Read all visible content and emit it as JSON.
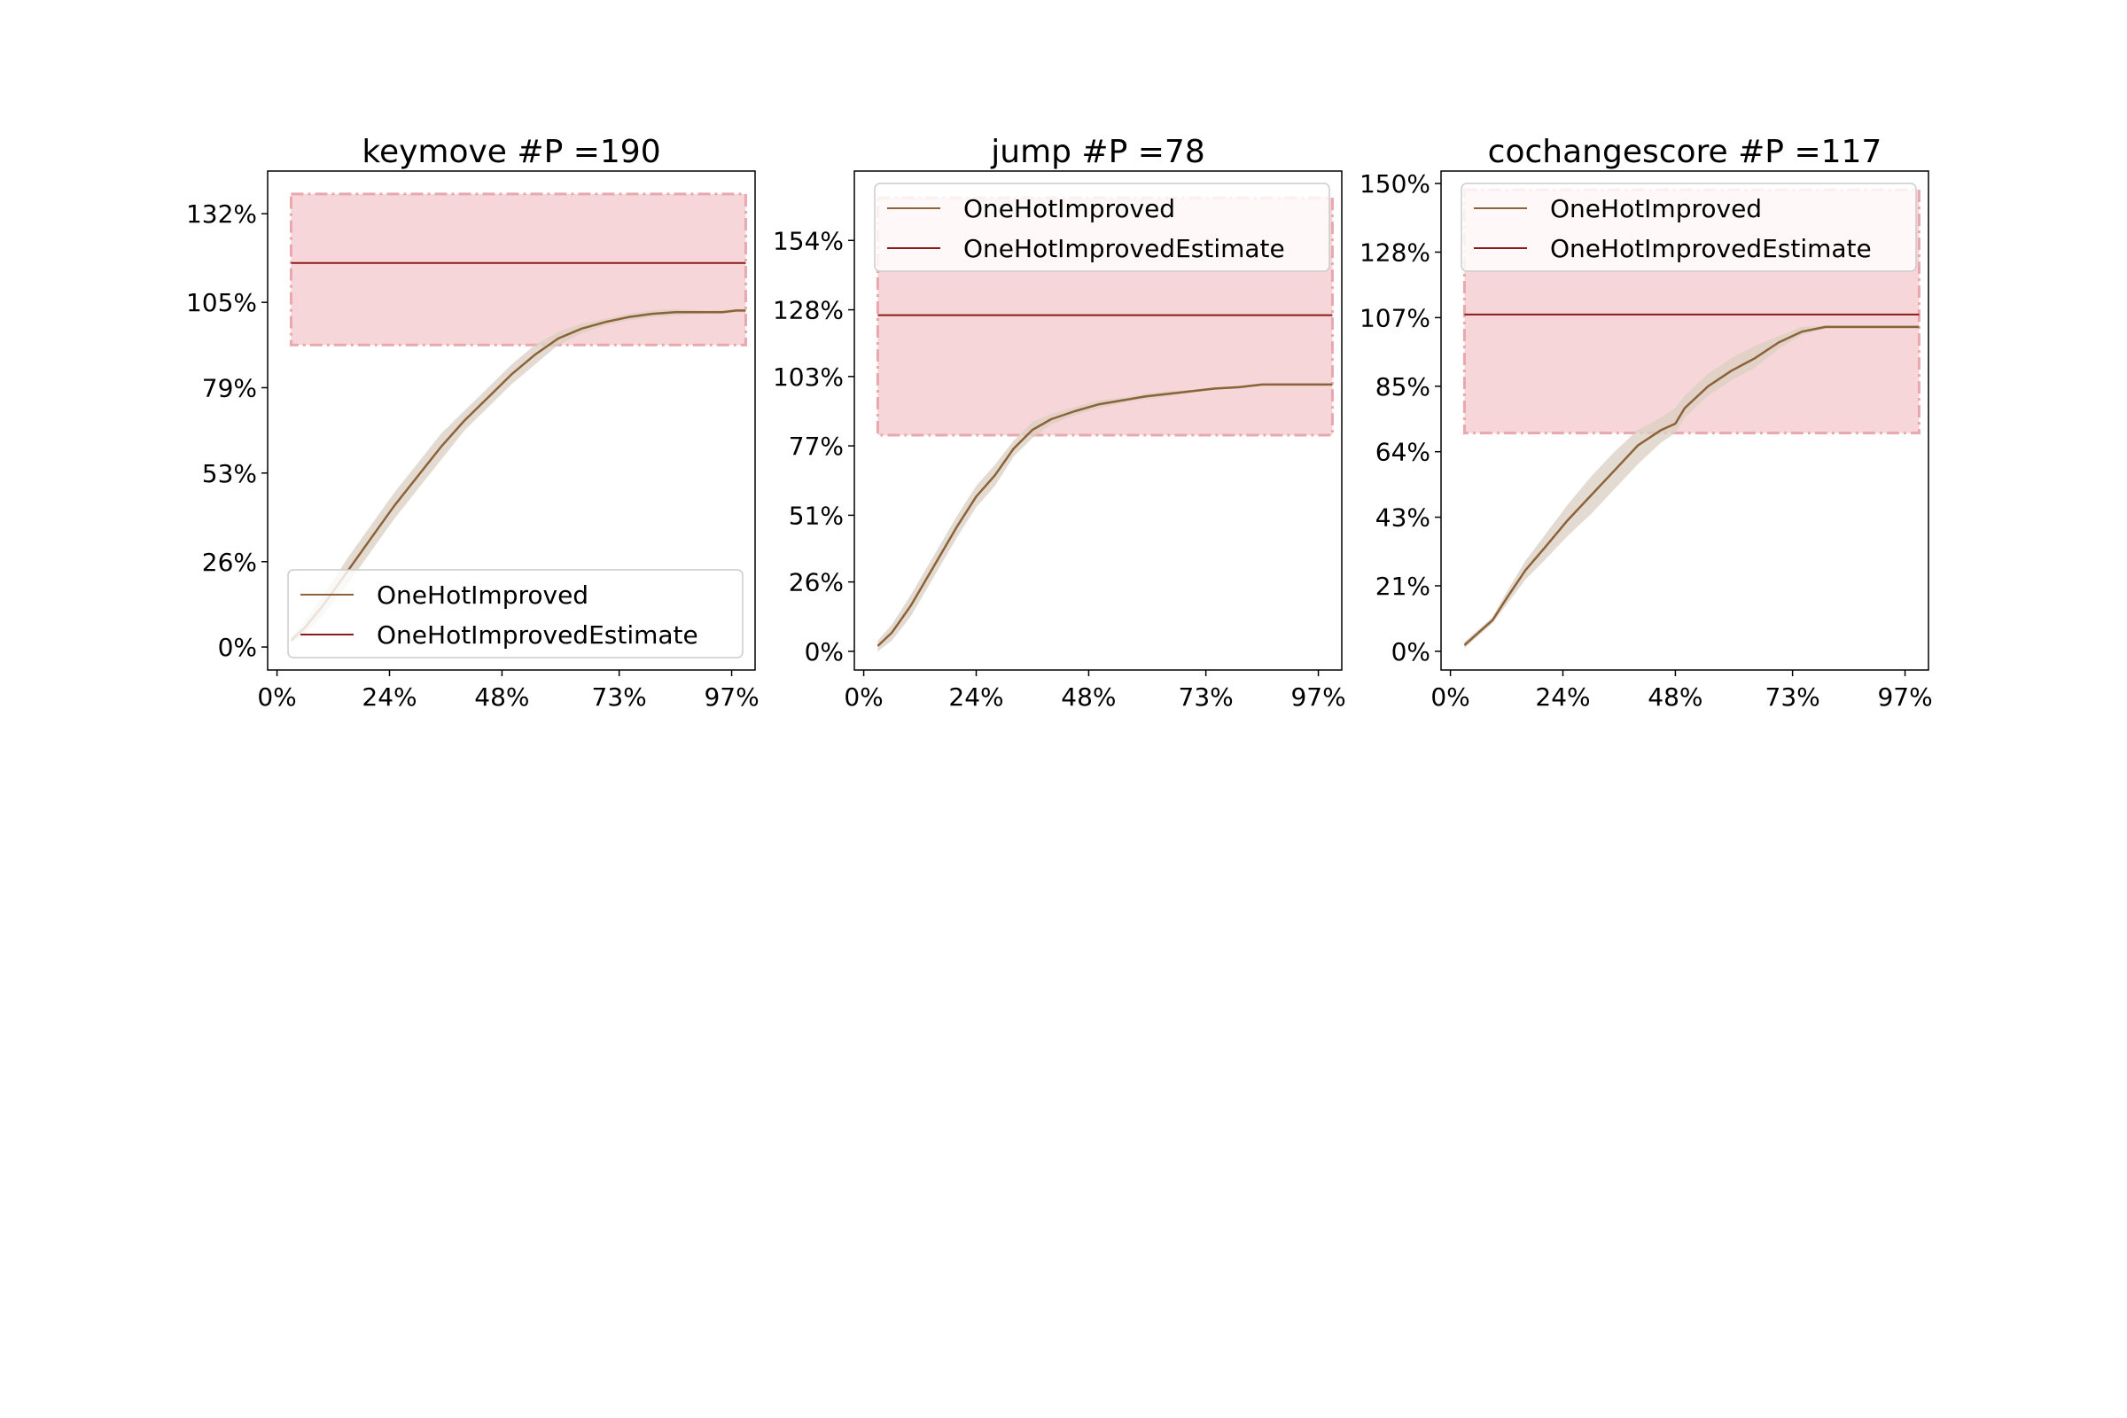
{
  "colors": {
    "improved_line": "#8c6239",
    "improved_band": "#d9cfc1",
    "estimate_line": "#8b1a1a",
    "estimate_band_fill": "#f6d6d8",
    "estimate_band_edge": "#e9a7ae",
    "axes": "#000000",
    "legend_edge": "#cccccc"
  },
  "chart_data": [
    {
      "type": "line",
      "title": "keymove #P =190",
      "xlabel": "",
      "ylabel": "",
      "xlim": [
        -2,
        102
      ],
      "ylim": [
        -7,
        145
      ],
      "xticks": [
        0,
        24,
        48,
        73,
        97
      ],
      "xtick_labels": [
        "0%",
        "24%",
        "48%",
        "73%",
        "97%"
      ],
      "yticks": [
        0,
        26,
        53,
        79,
        105,
        132
      ],
      "ytick_labels": [
        "0%",
        "26%",
        "53%",
        "79%",
        "105%",
        "132%"
      ],
      "grid": false,
      "legend_position": "lower-right",
      "series": [
        {
          "name": "OneHotImproved",
          "x": [
            3,
            6,
            10,
            15,
            20,
            25,
            30,
            35,
            40,
            45,
            50,
            55,
            60,
            65,
            70,
            75,
            80,
            85,
            90,
            95,
            98,
            100
          ],
          "y": [
            2,
            6,
            13,
            23,
            33,
            43,
            52,
            61,
            69,
            76,
            83,
            89,
            94,
            97,
            99,
            100.5,
            101.5,
            102,
            102,
            102,
            102.5,
            102.5
          ],
          "band_lower": [
            1,
            4,
            10,
            19,
            29,
            39,
            48,
            57,
            66,
            73,
            80,
            86,
            92,
            95.5,
            98,
            99.5,
            100.5,
            101,
            101.5,
            101.5,
            102,
            102
          ],
          "band_upper": [
            3,
            8,
            16,
            27,
            37,
            47,
            56,
            65,
            72,
            79,
            86,
            92,
            96,
            98.5,
            100,
            101.5,
            102.5,
            103,
            102.5,
            102.5,
            103,
            103
          ]
        },
        {
          "name": "OneHotImprovedEstimate",
          "value": 117,
          "x_start": 3,
          "x_end": 100,
          "band_lower": 92,
          "band_upper": 138
        }
      ]
    },
    {
      "type": "line",
      "title": "jump #P =78",
      "xlabel": "",
      "ylabel": "",
      "xlim": [
        -2,
        102
      ],
      "ylim": [
        -7,
        180
      ],
      "xticks": [
        0,
        24,
        48,
        73,
        97
      ],
      "xtick_labels": [
        "0%",
        "24%",
        "48%",
        "73%",
        "97%"
      ],
      "yticks": [
        0,
        26,
        51,
        77,
        103,
        128,
        154
      ],
      "ytick_labels": [
        "0%",
        "26%",
        "51%",
        "77%",
        "103%",
        "128%",
        "154%"
      ],
      "grid": false,
      "legend_position": "upper-right",
      "series": [
        {
          "name": "OneHotImproved",
          "x": [
            3,
            6,
            10,
            15,
            20,
            24,
            28,
            32,
            36,
            40,
            45,
            50,
            55,
            60,
            65,
            70,
            75,
            80,
            85,
            90,
            95,
            100
          ],
          "y": [
            2,
            7,
            17,
            32,
            47,
            58,
            66,
            76,
            83,
            87,
            90,
            92.5,
            94,
            95.5,
            96.5,
            97.5,
            98.5,
            99,
            100,
            100,
            100,
            100
          ],
          "band_lower": [
            0,
            4,
            13,
            28,
            43,
            54,
            62,
            73,
            80,
            85,
            88.5,
            91,
            93,
            94.5,
            95.5,
            97,
            98,
            98.5,
            99.5,
            99.5,
            99.5,
            99.5
          ],
          "band_upper": [
            4,
            10,
            21,
            36,
            51,
            62,
            70,
            79,
            86,
            89,
            91.5,
            94,
            95,
            96.5,
            97.5,
            98,
            99,
            99.5,
            100.5,
            100.5,
            100.5,
            100.5
          ]
        },
        {
          "name": "OneHotImprovedEstimate",
          "value": 126,
          "x_start": 3,
          "x_end": 100,
          "band_lower": 81,
          "band_upper": 170
        }
      ]
    },
    {
      "type": "line",
      "title": "cochangescore #P =117",
      "xlabel": "",
      "ylabel": "",
      "xlim": [
        -2,
        102
      ],
      "ylim": [
        -6,
        154
      ],
      "xticks": [
        0,
        24,
        48,
        73,
        97
      ],
      "xtick_labels": [
        "0%",
        "24%",
        "48%",
        "73%",
        "97%"
      ],
      "yticks": [
        0,
        21,
        43,
        64,
        85,
        107,
        128,
        150
      ],
      "ytick_labels": [
        "0%",
        "21%",
        "43%",
        "64%",
        "85%",
        "107%",
        "128%",
        "150%"
      ],
      "grid": false,
      "legend_position": "upper-right",
      "series": [
        {
          "name": "OneHotImproved",
          "x": [
            3,
            6,
            9,
            12,
            16,
            20,
            25,
            30,
            35,
            40,
            45,
            48,
            50,
            55,
            60,
            65,
            70,
            75,
            80,
            85,
            90,
            95,
            100
          ],
          "y": [
            2,
            6,
            10,
            17,
            26,
            33,
            42,
            50,
            58,
            66,
            71,
            73,
            78,
            85,
            90,
            94,
            99,
            102.5,
            104,
            104,
            104,
            104,
            104
          ],
          "band_lower": [
            1,
            5,
            9,
            15,
            23,
            29,
            37,
            44,
            52,
            60,
            67,
            70,
            75,
            82,
            87,
            91,
            97,
            101.5,
            103.5,
            103.5,
            103.5,
            103.5,
            103.5
          ],
          "band_upper": [
            3,
            7,
            11,
            19,
            29,
            37,
            47,
            56,
            64,
            71,
            75,
            78,
            82,
            89,
            94,
            98,
            101,
            104,
            104.5,
            104.5,
            104.5,
            104.5,
            104.5
          ]
        },
        {
          "name": "OneHotImprovedEstimate",
          "value": 108,
          "x_start": 3,
          "x_end": 100,
          "band_lower": 70,
          "band_upper": 148
        }
      ]
    }
  ]
}
